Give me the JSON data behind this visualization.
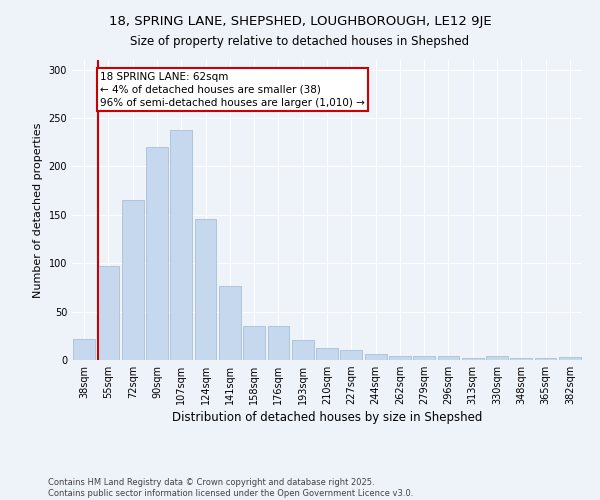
{
  "title_line1": "18, SPRING LANE, SHEPSHED, LOUGHBOROUGH, LE12 9JE",
  "title_line2": "Size of property relative to detached houses in Shepshed",
  "xlabel": "Distribution of detached houses by size in Shepshed",
  "ylabel": "Number of detached properties",
  "categories": [
    "38sqm",
    "55sqm",
    "72sqm",
    "90sqm",
    "107sqm",
    "124sqm",
    "141sqm",
    "158sqm",
    "176sqm",
    "193sqm",
    "210sqm",
    "227sqm",
    "244sqm",
    "262sqm",
    "279sqm",
    "296sqm",
    "313sqm",
    "330sqm",
    "348sqm",
    "365sqm",
    "382sqm"
  ],
  "values": [
    22,
    97,
    165,
    220,
    238,
    146,
    76,
    35,
    35,
    21,
    12,
    10,
    6,
    4,
    4,
    4,
    2,
    4,
    2,
    2,
    3
  ],
  "bar_color": "#c5d8ed",
  "bar_edge_color": "#a0b8d0",
  "vline_index": 1,
  "vline_color": "#cc0000",
  "annotation_text": "18 SPRING LANE: 62sqm\n← 4% of detached houses are smaller (38)\n96% of semi-detached houses are larger (1,010) →",
  "annotation_box_color": "#ffffff",
  "annotation_box_edge_color": "#cc0000",
  "ylim": [
    0,
    310
  ],
  "yticks": [
    0,
    50,
    100,
    150,
    200,
    250,
    300
  ],
  "background_color": "#eef2f9",
  "plot_background": "#eef2f9",
  "grid_color": "#ffffff",
  "footer_text": "Contains HM Land Registry data © Crown copyright and database right 2025.\nContains public sector information licensed under the Open Government Licence v3.0.",
  "title_fontsize": 9.5,
  "subtitle_fontsize": 8.5,
  "tick_fontsize": 7,
  "ylabel_fontsize": 8,
  "xlabel_fontsize": 8.5,
  "annotation_fontsize": 7.5,
  "footer_fontsize": 6
}
